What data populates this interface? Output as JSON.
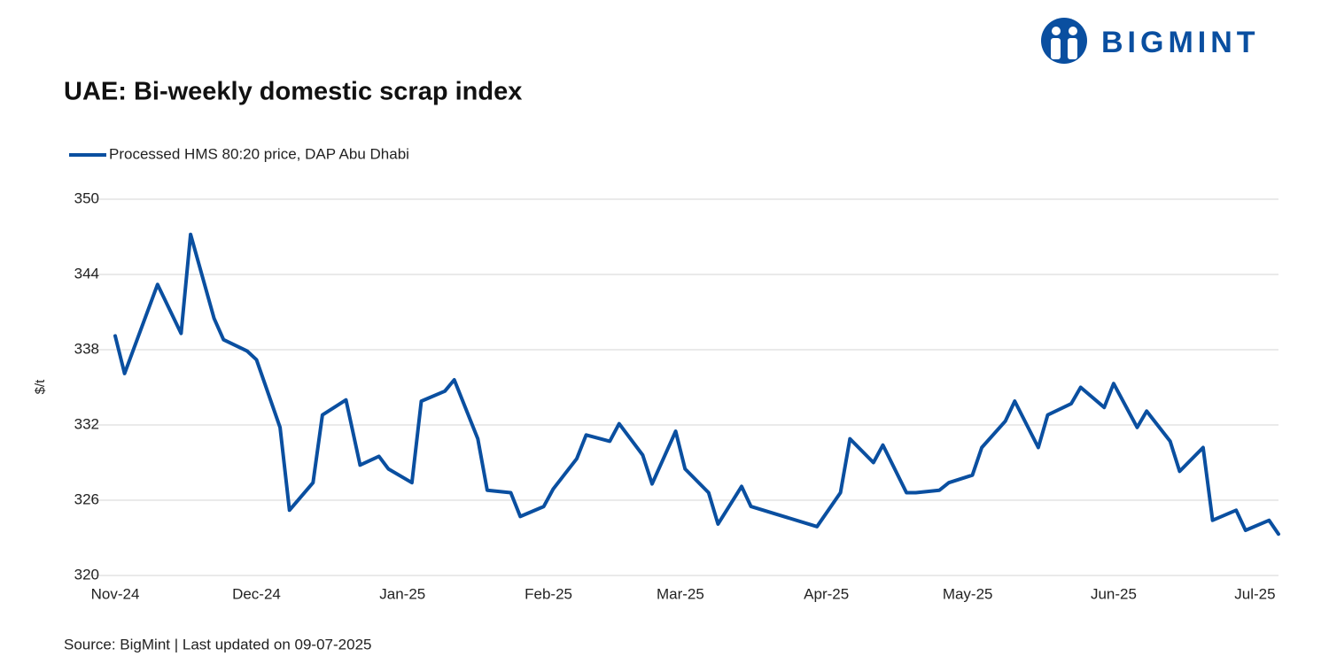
{
  "brand": "BIGMINT",
  "chart_data": {
    "type": "line",
    "title": "UAE: Bi-weekly domestic scrap index",
    "y_label": "$/t",
    "source": "Source: BigMint  |  Last updated on 09-07-2025",
    "grid": true,
    "legend": "top-left",
    "x": [
      0,
      2,
      9,
      14,
      16,
      21,
      23,
      28,
      30,
      35,
      37,
      42,
      44,
      49,
      52,
      56,
      58,
      63,
      65,
      70,
      72,
      77,
      79,
      84,
      86,
      91,
      93,
      98,
      100,
      105,
      107,
      112,
      114,
      119,
      121,
      126,
      128,
      133,
      135,
      149,
      154,
      156,
      161,
      163,
      168,
      170,
      175,
      177,
      182,
      184,
      189,
      191,
      196,
      198,
      203,
      205,
      210,
      212,
      217,
      219,
      224,
      226,
      231,
      233,
      238,
      240,
      245,
      247
    ],
    "xlim": [
      0,
      247
    ],
    "xticks": [
      {
        "value": 0,
        "label": "Nov-24"
      },
      {
        "value": 30,
        "label": "Dec-24"
      },
      {
        "value": 61,
        "label": "Jan-25"
      },
      {
        "value": 92,
        "label": "Feb-25"
      },
      {
        "value": 120,
        "label": "Mar-25"
      },
      {
        "value": 151,
        "label": "Apr-25"
      },
      {
        "value": 181,
        "label": "May-25"
      },
      {
        "value": 212,
        "label": "Jun-25"
      },
      {
        "value": 242,
        "label": "Jul-25"
      }
    ],
    "ylim": [
      320,
      350
    ],
    "yticks": [
      320,
      326,
      332,
      338,
      344,
      350
    ],
    "series": [
      {
        "name": "Processed HMS 80:20 price, DAP Abu Dhabi",
        "color": "#0a4fa0",
        "values": [
          339.1,
          336.1,
          343.2,
          339.3,
          347.2,
          340.5,
          338.8,
          337.9,
          337.2,
          331.8,
          325.2,
          327.4,
          332.8,
          334.0,
          328.8,
          329.5,
          328.5,
          327.4,
          333.9,
          334.7,
          335.6,
          330.9,
          326.8,
          326.6,
          324.7,
          325.5,
          326.9,
          329.3,
          331.2,
          330.7,
          332.1,
          329.6,
          327.3,
          331.5,
          328.5,
          326.6,
          324.1,
          327.1,
          325.5,
          323.9,
          326.6,
          330.9,
          329.0,
          330.4,
          326.6,
          326.6,
          326.8,
          327.4,
          328.0,
          330.2,
          332.3,
          333.9,
          330.2,
          332.8,
          333.7,
          335.0,
          333.4,
          335.3,
          331.8,
          333.1,
          330.7,
          328.3,
          330.2,
          324.4,
          325.2,
          323.6,
          324.4,
          323.3
        ]
      }
    ]
  }
}
